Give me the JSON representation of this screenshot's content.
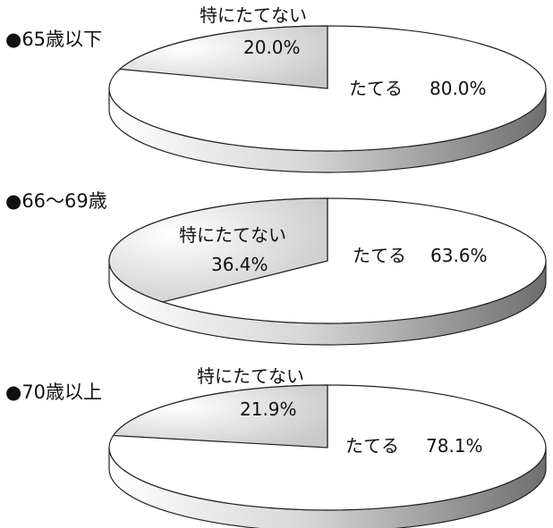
{
  "chart_data": [
    {
      "type": "pie",
      "title": "●65歳以下",
      "slices": [
        {
          "name": "たてる",
          "value": 80.0,
          "value_label": "80.0%",
          "color": "#ffffff"
        },
        {
          "name": "特にたてない",
          "value": 20.0,
          "value_label": "20.0%",
          "color": "#e0e0e0"
        }
      ]
    },
    {
      "type": "pie",
      "title": "●66〜69歳",
      "slices": [
        {
          "name": "たてる",
          "value": 63.6,
          "value_label": "63.6%",
          "color": "#ffffff"
        },
        {
          "name": "特にたてない",
          "value": 36.4,
          "value_label": "36.4%",
          "color": "#e0e0e0"
        }
      ]
    },
    {
      "type": "pie",
      "title": "●70歳以上",
      "slices": [
        {
          "name": "たてる",
          "value": 78.1,
          "value_label": "78.1%",
          "color": "#ffffff"
        },
        {
          "name": "特にたてない",
          "value": 21.9,
          "value_label": "21.9%",
          "color": "#e0e0e0"
        }
      ]
    }
  ]
}
